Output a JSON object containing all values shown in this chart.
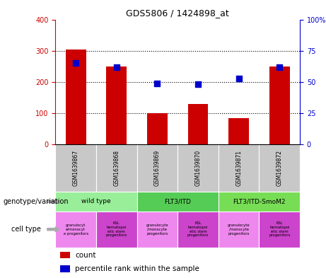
{
  "title": "GDS5806 / 1424898_at",
  "samples": [
    "GSM1639867",
    "GSM1639868",
    "GSM1639869",
    "GSM1639870",
    "GSM1639871",
    "GSM1639872"
  ],
  "counts": [
    305,
    250,
    100,
    130,
    85,
    250
  ],
  "percentiles": [
    65,
    62,
    49,
    48,
    53,
    62
  ],
  "ylim_left": [
    0,
    400
  ],
  "ylim_right": [
    0,
    100
  ],
  "yticks_left": [
    0,
    100,
    200,
    300,
    400
  ],
  "yticks_right": [
    0,
    25,
    50,
    75,
    100
  ],
  "ytick_right_labels": [
    "0",
    "25",
    "50",
    "75",
    "100%"
  ],
  "bar_color": "#cc0000",
  "dot_color": "#0000cc",
  "genotype_groups": [
    {
      "label": "wild type",
      "cols": [
        0,
        1
      ],
      "color": "#99ee99"
    },
    {
      "label": "FLT3/ITD",
      "cols": [
        2,
        3
      ],
      "color": "#55cc55"
    },
    {
      "label": "FLT3/ITD-SmoM2",
      "cols": [
        4,
        5
      ],
      "color": "#77dd55"
    }
  ],
  "cell_types": [
    {
      "label": "granulocyt\ne/monocyt\ne progenitors",
      "col": 0,
      "color": "#ee88ee"
    },
    {
      "label": "KSL\nhematopoi\netic stem\nprogenitors",
      "col": 1,
      "color": "#cc44cc"
    },
    {
      "label": "granulocyte\n/monocyte\nprogenitors",
      "col": 2,
      "color": "#ee88ee"
    },
    {
      "label": "KSL\nhematopoi\netic stem\nprogenitors",
      "col": 3,
      "color": "#cc44cc"
    },
    {
      "label": "granulocyte\n/monocyte\nprogenitors",
      "col": 4,
      "color": "#ee88ee"
    },
    {
      "label": "KSL\nhematopoi\netic stem\nprogenitors",
      "col": 5,
      "color": "#cc44cc"
    }
  ],
  "bar_width": 0.5,
  "dot_size": 30,
  "left_yaxis_color": "#cc0000",
  "right_yaxis_color": "#0000cc",
  "sample_bg_color": "#c8c8c8",
  "legend_count_label": "count",
  "legend_percentile_label": "percentile rank within the sample",
  "left_label_geno": "genotype/variation",
  "left_label_cell": "cell type"
}
